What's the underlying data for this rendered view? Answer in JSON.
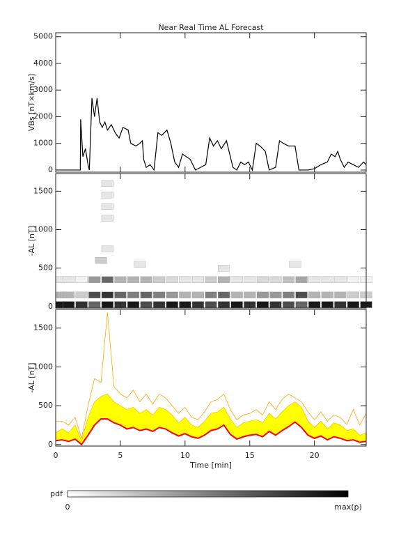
{
  "chart_data": [
    {
      "type": "line",
      "title": "Near Real Time AL Forecast",
      "y_label": "VBs [nT×km/s]",
      "xlim": [
        0,
        24
      ],
      "ylim": [
        -80,
        5150
      ],
      "xticks": [
        0,
        5,
        10,
        15,
        20
      ],
      "yticks": [
        0,
        1000,
        2000,
        3000,
        4000,
        5000
      ],
      "x": [
        0,
        1.9,
        1.93,
        2.1,
        2.3,
        2.5,
        2.6,
        2.8,
        3.0,
        3.2,
        3.4,
        3.6,
        3.8,
        4.0,
        4.3,
        4.6,
        4.9,
        5.2,
        5.6,
        5.8,
        6.2,
        6.5,
        6.7,
        6.8,
        7.0,
        7.3,
        7.6,
        7.9,
        8.2,
        8.6,
        8.9,
        9.2,
        9.5,
        9.8,
        10.1,
        10.4,
        10.8,
        11.2,
        11.6,
        11.9,
        12.2,
        12.5,
        12.8,
        13.2,
        13.5,
        13.7,
        14.0,
        14.3,
        14.6,
        14.9,
        15.2,
        15.5,
        15.8,
        16.2,
        16.5,
        17.0,
        17.3,
        17.6,
        18.0,
        18.5,
        18.8,
        19.5,
        20.0,
        20.5,
        21.0,
        21.3,
        21.6,
        21.8,
        22.0,
        22.3,
        22.6,
        23.0,
        23.4,
        23.8,
        24
      ],
      "series": [
        {
          "color": "#000000",
          "values": [
            0,
            0,
            1900,
            500,
            800,
            200,
            0,
            2700,
            2000,
            2700,
            1800,
            1600,
            1800,
            1500,
            1700,
            1400,
            1200,
            1600,
            1500,
            1000,
            900,
            1000,
            1100,
            400,
            100,
            200,
            0,
            1400,
            1300,
            1500,
            1000,
            300,
            100,
            600,
            500,
            400,
            0,
            100,
            200,
            1200,
            900,
            1100,
            800,
            1100,
            500,
            100,
            0,
            300,
            200,
            300,
            0,
            1000,
            900,
            700,
            0,
            100,
            1100,
            1000,
            900,
            900,
            0,
            0,
            50,
            200,
            300,
            600,
            500,
            700,
            400,
            100,
            300,
            200,
            100,
            300,
            200
          ]
        }
      ]
    },
    {
      "type": "heatmap",
      "y_label": "-AL [nT]",
      "xlim": [
        0,
        24
      ],
      "ylim": [
        -20,
        1730
      ],
      "xticks": [
        0,
        5,
        10,
        15,
        20
      ],
      "yticks": [
        0,
        500,
        1000,
        1500
      ],
      "x": [
        0,
        1,
        2,
        3,
        4,
        5,
        6,
        7,
        8,
        9,
        10,
        11,
        12,
        13,
        14,
        15,
        16,
        17,
        18,
        19,
        20,
        21,
        22,
        23,
        24,
        0,
        1,
        2,
        3,
        4,
        5,
        6,
        7,
        8,
        9,
        10,
        11,
        12,
        13,
        14,
        15,
        16,
        17,
        18,
        19,
        20,
        21,
        22,
        23,
        24,
        0,
        1,
        2,
        3,
        4,
        5,
        6,
        7,
        8,
        9,
        10,
        11,
        12,
        13,
        14,
        15,
        16,
        17,
        18,
        19,
        20,
        21,
        22,
        23,
        24,
        3.5,
        4,
        4,
        4,
        4,
        4,
        6.5,
        18.5,
        13
      ],
      "y": [
        25,
        25,
        25,
        25,
        25,
        25,
        25,
        25,
        25,
        25,
        25,
        25,
        25,
        25,
        25,
        25,
        25,
        25,
        25,
        25,
        25,
        25,
        25,
        25,
        25,
        150,
        150,
        150,
        150,
        150,
        150,
        150,
        150,
        150,
        150,
        150,
        150,
        150,
        150,
        150,
        150,
        150,
        150,
        150,
        150,
        150,
        150,
        150,
        150,
        150,
        350,
        350,
        350,
        350,
        350,
        350,
        350,
        350,
        350,
        350,
        350,
        350,
        350,
        350,
        350,
        350,
        350,
        350,
        350,
        350,
        350,
        350,
        350,
        350,
        350,
        600,
        750,
        1150,
        1300,
        1450,
        1600,
        550,
        550,
        500
      ],
      "values": [
        0.9,
        0.9,
        0.8,
        0.6,
        0.9,
        0.8,
        0.9,
        0.7,
        0.8,
        0.9,
        0.9,
        0.8,
        0.7,
        0.8,
        0.9,
        0.8,
        0.9,
        0.8,
        0.7,
        0.6,
        0.9,
        0.9,
        0.8,
        0.9,
        0.9,
        0.3,
        0.3,
        0.2,
        0.7,
        0.8,
        0.6,
        0.5,
        0.6,
        0.5,
        0.4,
        0.3,
        0.3,
        0.5,
        0.6,
        0.3,
        0.3,
        0.4,
        0.4,
        0.5,
        0.7,
        0.3,
        0.3,
        0.3,
        0.2,
        0.2,
        0.1,
        0.1,
        0.05,
        0.4,
        0.6,
        0.3,
        0.3,
        0.3,
        0.2,
        0.15,
        0.1,
        0.1,
        0.2,
        0.3,
        0.1,
        0.1,
        0.15,
        0.15,
        0.25,
        0.35,
        0.1,
        0.1,
        0.1,
        0.05,
        0.05,
        0.2,
        0.1,
        0.1,
        0.1,
        0.1,
        0.1,
        0.1,
        0.1,
        0.1
      ],
      "colorbar_label": "pdf",
      "colorbar_min": "0",
      "colorbar_max": "max(p)"
    },
    {
      "type": "line",
      "y_label": "-AL [nT]",
      "x_label": "Time [min]",
      "xlim": [
        0,
        24
      ],
      "ylim": [
        -20,
        1740
      ],
      "xticks": [
        0,
        5,
        10,
        15,
        20
      ],
      "yticks": [
        0,
        500,
        1000,
        1500
      ],
      "x": [
        0,
        0.5,
        1,
        1.5,
        2,
        2.5,
        3,
        3.5,
        4,
        4.5,
        5,
        5.5,
        6,
        6.5,
        7,
        7.5,
        8,
        8.5,
        9,
        9.5,
        10,
        10.5,
        11,
        11.5,
        12,
        12.5,
        13,
        13.5,
        14,
        14.5,
        15,
        15.5,
        16,
        16.5,
        17,
        17.5,
        18,
        18.5,
        19,
        19.5,
        20,
        20.5,
        21,
        21.5,
        22,
        22.5,
        23,
        23.5,
        24
      ],
      "series": [
        {
          "color": "#ffa500",
          "values": [
            300,
            300,
            250,
            350,
            80,
            500,
            850,
            800,
            1700,
            750,
            650,
            600,
            700,
            550,
            650,
            520,
            650,
            600,
            500,
            400,
            480,
            350,
            320,
            420,
            550,
            580,
            650,
            450,
            320,
            380,
            400,
            450,
            380,
            550,
            450,
            580,
            650,
            600,
            550,
            420,
            320,
            420,
            300,
            380,
            350,
            260,
            450,
            250,
            400
          ]
        },
        {
          "color": "#ffff00",
          "fill": true,
          "values": [
            150,
            200,
            150,
            250,
            50,
            350,
            550,
            620,
            650,
            550,
            500,
            450,
            480,
            400,
            450,
            380,
            480,
            450,
            380,
            280,
            350,
            250,
            220,
            300,
            400,
            420,
            480,
            330,
            220,
            280,
            300,
            320,
            280,
            400,
            330,
            420,
            500,
            550,
            480,
            300,
            220,
            300,
            200,
            280,
            250,
            180,
            200,
            120,
            150
          ]
        },
        {
          "color": "#ff0000",
          "values": [
            50,
            60,
            40,
            70,
            0,
            120,
            250,
            330,
            330,
            280,
            250,
            200,
            220,
            180,
            200,
            170,
            220,
            200,
            150,
            110,
            140,
            100,
            80,
            120,
            180,
            200,
            250,
            130,
            70,
            100,
            120,
            130,
            100,
            170,
            120,
            180,
            230,
            290,
            220,
            120,
            80,
            110,
            60,
            100,
            80,
            50,
            60,
            30,
            40
          ]
        }
      ]
    }
  ]
}
